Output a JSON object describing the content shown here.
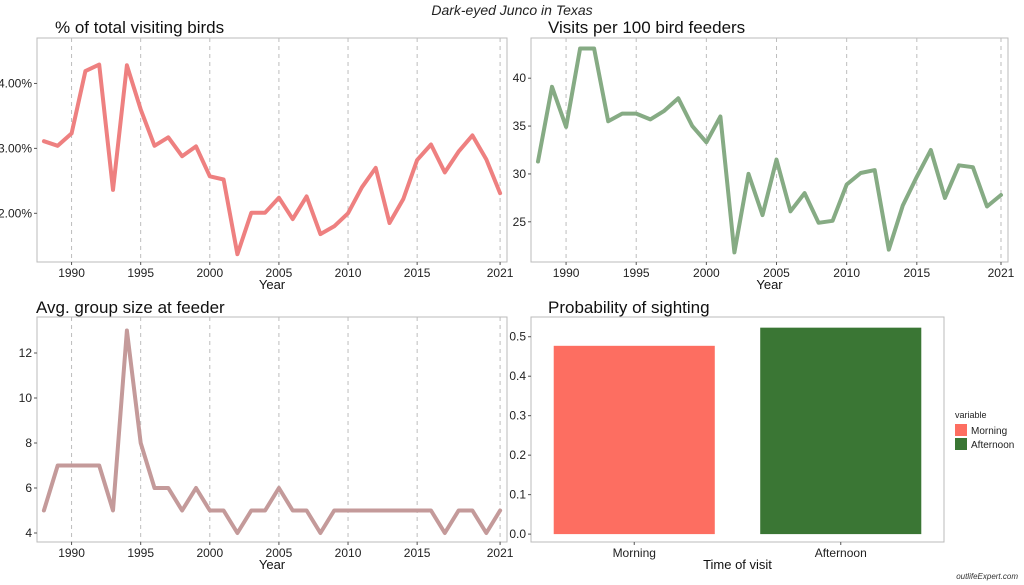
{
  "figure": {
    "title": "Dark-eyed Junco in Texas",
    "watermark": "outlifeExpert.com"
  },
  "chart_data": [
    {
      "type": "line",
      "title": "% of total visiting birds",
      "xlabel": "Year",
      "ylabel": "",
      "xlim": [
        1987.5,
        2021.5
      ],
      "ylim": [
        1.25,
        4.7
      ],
      "x_ticks": [
        1990,
        1995,
        2000,
        2005,
        2010,
        2015,
        2021
      ],
      "y_ticks": [
        2.0,
        3.0,
        4.0
      ],
      "y_tick_labels": [
        "2.00%",
        "3.00%",
        "4.00%"
      ],
      "grid": "vertical dashed at x ticks",
      "color": "#ee8080",
      "x": [
        1988,
        1989,
        1990,
        1991,
        1992,
        1993,
        1994,
        1995,
        1996,
        1997,
        1998,
        1999,
        2000,
        2001,
        2002,
        2003,
        2004,
        2005,
        2006,
        2007,
        2008,
        2009,
        2010,
        2011,
        2012,
        2013,
        2014,
        2015,
        2016,
        2017,
        2018,
        2019,
        2020,
        2021
      ],
      "y": [
        3.11,
        3.04,
        3.23,
        4.19,
        4.29,
        2.36,
        4.28,
        3.6,
        3.04,
        3.17,
        2.88,
        3.03,
        2.57,
        2.52,
        1.37,
        2.01,
        2.01,
        2.24,
        1.91,
        2.26,
        1.68,
        1.8,
        2.0,
        2.4,
        2.7,
        1.85,
        2.22,
        2.82,
        3.06,
        2.63,
        2.95,
        3.2,
        2.83,
        2.31
      ]
    },
    {
      "type": "line",
      "title": "Visits per 100 bird feeders",
      "xlabel": "Year",
      "ylabel": "",
      "xlim": [
        1987.5,
        2021.5
      ],
      "ylim": [
        20.8,
        44.2
      ],
      "x_ticks": [
        1990,
        1995,
        2000,
        2005,
        2010,
        2015,
        2021
      ],
      "y_ticks": [
        25,
        30,
        35,
        40
      ],
      "y_tick_labels": [
        "25",
        "30",
        "35",
        "40"
      ],
      "grid": "vertical dashed at x ticks",
      "color": "#86ab84",
      "x": [
        1988,
        1989,
        1990,
        1991,
        1992,
        1993,
        1994,
        1995,
        1996,
        1997,
        1998,
        1999,
        2000,
        2001,
        2002,
        2003,
        2004,
        2005,
        2006,
        2007,
        2008,
        2009,
        2010,
        2011,
        2012,
        2013,
        2014,
        2015,
        2016,
        2017,
        2018,
        2019,
        2020,
        2021
      ],
      "y": [
        31.3,
        39.1,
        34.9,
        43.1,
        43.1,
        35.5,
        36.3,
        36.3,
        35.7,
        36.6,
        37.9,
        35.0,
        33.3,
        36.0,
        21.8,
        30.0,
        25.7,
        31.5,
        26.1,
        28.0,
        24.9,
        25.1,
        28.9,
        30.1,
        30.4,
        22.1,
        26.7,
        29.7,
        32.5,
        27.5,
        30.9,
        30.7,
        26.6,
        27.8
      ]
    },
    {
      "type": "line",
      "title": "Avg. group size at feeder",
      "xlabel": "Year",
      "ylabel": "",
      "xlim": [
        1987.5,
        2021.5
      ],
      "ylim": [
        3.6,
        13.6
      ],
      "x_ticks": [
        1990,
        1995,
        2000,
        2005,
        2010,
        2015,
        2021
      ],
      "y_ticks": [
        4,
        6,
        8,
        10,
        12
      ],
      "y_tick_labels": [
        "4",
        "6",
        "8",
        "10",
        "12"
      ],
      "grid": "vertical dashed at x ticks",
      "color": "#c49a9a",
      "x": [
        1988,
        1989,
        1990,
        1991,
        1992,
        1993,
        1994,
        1995,
        1996,
        1997,
        1998,
        1999,
        2000,
        2001,
        2002,
        2003,
        2004,
        2005,
        2006,
        2007,
        2008,
        2009,
        2010,
        2011,
        2012,
        2013,
        2014,
        2015,
        2016,
        2017,
        2018,
        2019,
        2020,
        2021
      ],
      "y": [
        5,
        7,
        7,
        7,
        7,
        5,
        13,
        8,
        6,
        6,
        5,
        6,
        5,
        5,
        4,
        5,
        5,
        6,
        5,
        5,
        4,
        5,
        5,
        5,
        5,
        5,
        5,
        5,
        5,
        4,
        5,
        5,
        4,
        5
      ]
    },
    {
      "type": "bar",
      "title": "Probability of sighting",
      "xlabel": "Time of visit",
      "ylabel": "",
      "categories": [
        "Morning",
        "Afternoon"
      ],
      "values": [
        0.477,
        0.523
      ],
      "colors": [
        "#fd6e61",
        "#3a7634"
      ],
      "ylim": [
        -0.02,
        0.55
      ],
      "y_ticks": [
        0.0,
        0.1,
        0.2,
        0.3,
        0.4,
        0.5
      ],
      "y_tick_labels": [
        "0.0",
        "0.1",
        "0.2",
        "0.3",
        "0.4",
        "0.5"
      ],
      "grid": "off",
      "legend": {
        "title": "variable",
        "position": "right",
        "entries": [
          "Morning",
          "Afternoon"
        ]
      }
    }
  ]
}
